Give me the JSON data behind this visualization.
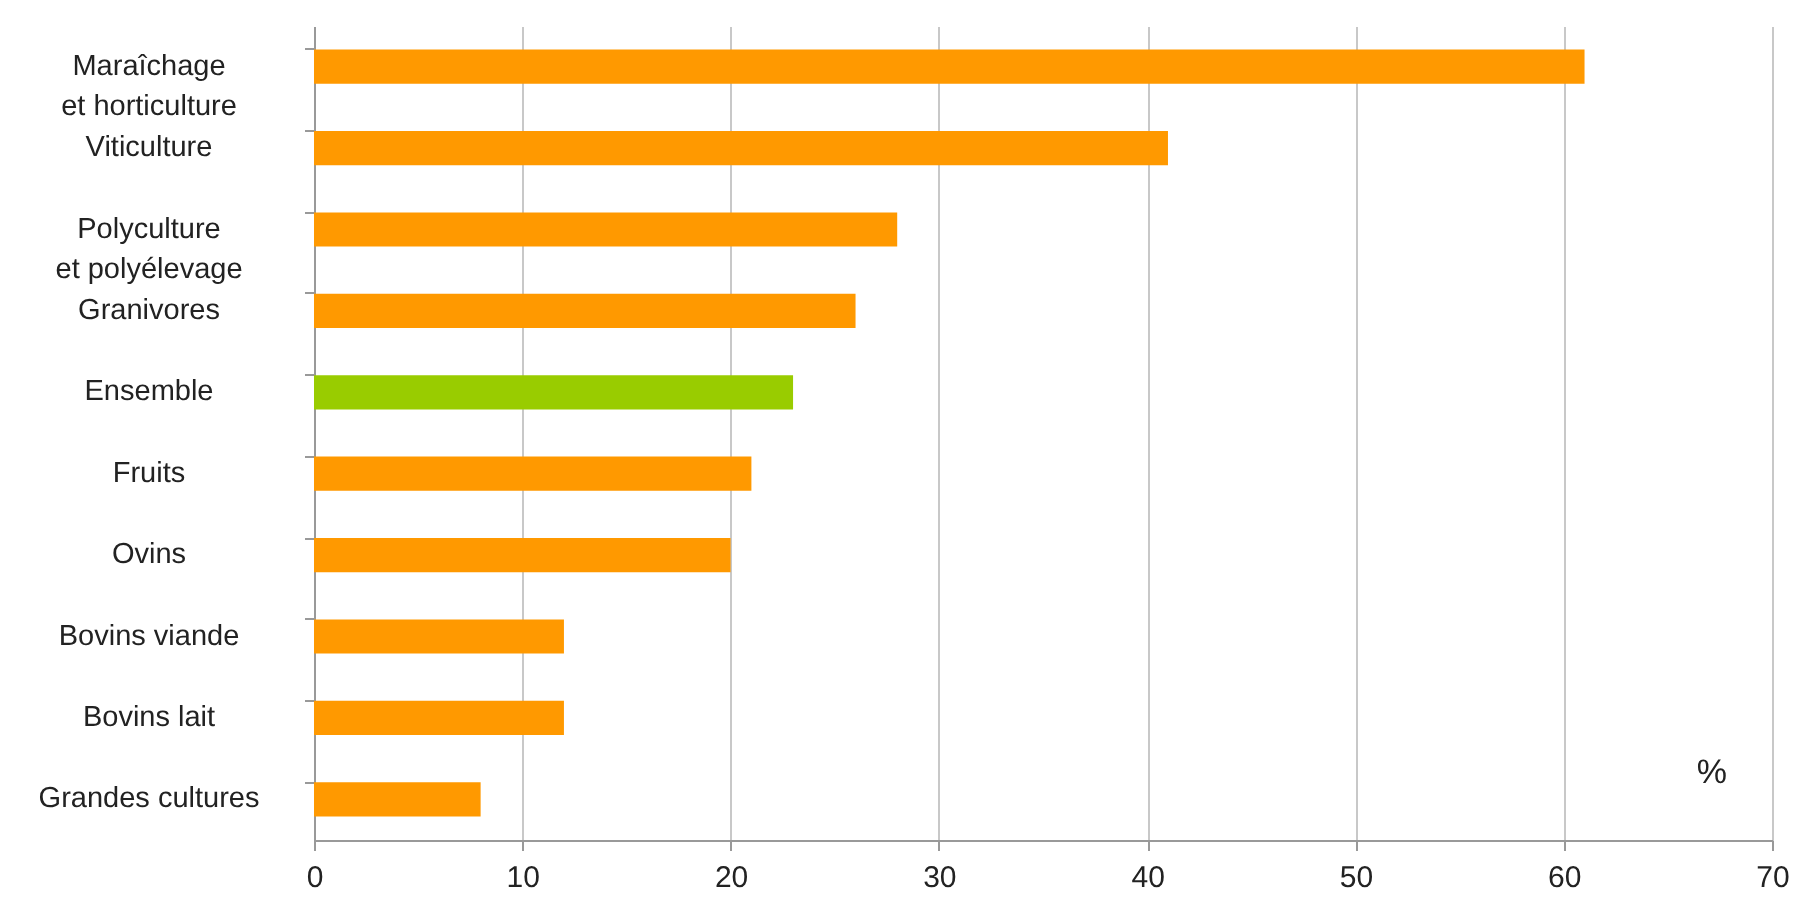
{
  "chart_data": {
    "type": "bar",
    "orientation": "horizontal",
    "xlabel": "%",
    "categories": [
      "Maraîchage\net horticulture",
      "Viticulture",
      "Polyculture\net polyélevage",
      "Granivores",
      "Ensemble",
      "Fruits",
      "Ovins",
      "Bovins viande",
      "Bovins lait",
      "Grandes cultures"
    ],
    "values": [
      61,
      41,
      28,
      26,
      23,
      21,
      20,
      12,
      12,
      8
    ],
    "colors": [
      "#ff9900",
      "#ff9900",
      "#ff9900",
      "#ff9900",
      "#99cc00",
      "#ff9900",
      "#ff9900",
      "#ff9900",
      "#ff9900",
      "#ff9900"
    ],
    "xlim": [
      0,
      70
    ],
    "xticks": [
      0,
      10,
      20,
      30,
      40,
      50,
      60,
      70
    ],
    "grid": "x"
  }
}
